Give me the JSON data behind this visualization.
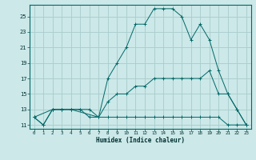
{
  "xlabel": "Humidex (Indice chaleur)",
  "bg_color": "#cce8e8",
  "grid_color": "#a8cccc",
  "line_color": "#006868",
  "xlim": [
    -0.5,
    23.5
  ],
  "ylim": [
    10.5,
    26.5
  ],
  "xticks": [
    0,
    1,
    2,
    3,
    4,
    5,
    6,
    7,
    8,
    9,
    10,
    11,
    12,
    13,
    14,
    15,
    16,
    17,
    18,
    19,
    20,
    21,
    22,
    23
  ],
  "yticks": [
    11,
    13,
    15,
    17,
    19,
    21,
    23,
    25
  ],
  "line1_x": [
    0,
    1,
    2,
    3,
    4,
    5,
    6,
    7,
    8,
    9,
    10,
    11,
    12,
    13,
    14,
    15,
    16,
    17,
    18,
    19,
    20,
    21,
    22,
    23
  ],
  "line1_y": [
    12,
    11,
    13,
    13,
    13,
    13,
    12,
    12,
    12,
    12,
    12,
    12,
    12,
    12,
    12,
    12,
    12,
    12,
    12,
    12,
    12,
    11,
    11,
    11
  ],
  "line2_x": [
    0,
    1,
    2,
    3,
    4,
    5,
    6,
    7,
    8,
    9,
    10,
    11,
    12,
    13,
    14,
    15,
    16,
    17,
    18,
    19,
    20,
    21,
    22,
    23
  ],
  "line2_y": [
    12,
    11,
    13,
    13,
    13,
    13,
    13,
    12,
    14,
    15,
    15,
    16,
    16,
    17,
    17,
    17,
    17,
    17,
    17,
    18,
    15,
    15,
    13,
    11
  ],
  "line3_x": [
    0,
    2,
    3,
    4,
    7,
    8,
    9,
    10,
    11,
    12,
    13,
    14,
    15,
    16,
    17,
    18,
    19,
    20,
    21,
    22,
    23
  ],
  "line3_y": [
    12,
    13,
    13,
    13,
    12,
    17,
    19,
    21,
    24,
    24,
    26,
    26,
    26,
    25,
    22,
    24,
    22,
    18,
    15,
    13,
    11
  ]
}
